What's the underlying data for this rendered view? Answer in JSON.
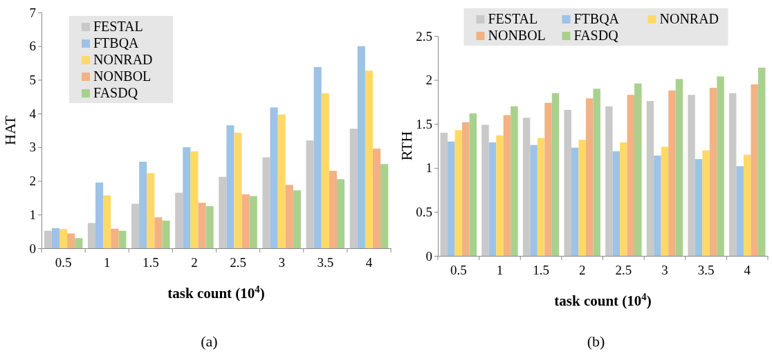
{
  "chart_data": [
    {
      "type": "bar",
      "title": "(a)",
      "xlabel": "task count (10$^{4}$)",
      "ylabel": "HAT",
      "categories": [
        "0.5",
        "1",
        "1.5",
        "2",
        "2.5",
        "3",
        "3.5",
        "4"
      ],
      "ylim": [
        0,
        7
      ],
      "yticks": [
        0,
        1,
        2,
        3,
        4,
        5,
        6,
        7
      ],
      "legend": "top left",
      "series": [
        {
          "name": "FESTAL",
          "color": "#c9c9c9",
          "values": [
            0.52,
            0.75,
            1.32,
            1.65,
            2.12,
            2.7,
            3.2,
            3.55
          ]
        },
        {
          "name": "FTBQA",
          "color": "#9dc3e6",
          "values": [
            0.6,
            1.95,
            2.57,
            3.0,
            3.65,
            4.18,
            5.38,
            6.0
          ]
        },
        {
          "name": "NONRAD",
          "color": "#ffd966",
          "values": [
            0.57,
            1.57,
            2.23,
            2.88,
            3.43,
            3.97,
            4.6,
            5.27
          ]
        },
        {
          "name": "NONBOL",
          "color": "#f4b183",
          "values": [
            0.44,
            0.58,
            0.92,
            1.35,
            1.6,
            1.88,
            2.3,
            2.96
          ]
        },
        {
          "name": "FASDQ",
          "color": "#a9d18e",
          "values": [
            0.3,
            0.52,
            0.82,
            1.25,
            1.55,
            1.72,
            2.05,
            2.5
          ]
        }
      ]
    },
    {
      "type": "bar",
      "title": "(b)",
      "xlabel": "task count (10$^{4}$)",
      "ylabel": "RTH",
      "categories": [
        "0.5",
        "1",
        "1.5",
        "2",
        "2.5",
        "3",
        "3.5",
        "4"
      ],
      "ylim": [
        0,
        2.5
      ],
      "yticks": [
        0,
        0.5,
        1,
        1.5,
        2,
        2.5
      ],
      "legend": "top",
      "series": [
        {
          "name": "FESTAL",
          "color": "#c9c9c9",
          "values": [
            1.4,
            1.49,
            1.57,
            1.66,
            1.7,
            1.76,
            1.83,
            1.85
          ]
        },
        {
          "name": "FTBQA",
          "color": "#9dc3e6",
          "values": [
            1.3,
            1.29,
            1.26,
            1.23,
            1.19,
            1.14,
            1.1,
            1.02
          ]
        },
        {
          "name": "NONRAD",
          "color": "#ffd966",
          "values": [
            1.43,
            1.37,
            1.34,
            1.32,
            1.29,
            1.24,
            1.2,
            1.15
          ]
        },
        {
          "name": "NONBOL",
          "color": "#f4b183",
          "values": [
            1.52,
            1.6,
            1.74,
            1.79,
            1.83,
            1.88,
            1.91,
            1.95
          ]
        },
        {
          "name": "FASDQ",
          "color": "#a9d18e",
          "values": [
            1.62,
            1.7,
            1.85,
            1.9,
            1.96,
            2.01,
            2.04,
            2.14
          ]
        }
      ]
    }
  ]
}
